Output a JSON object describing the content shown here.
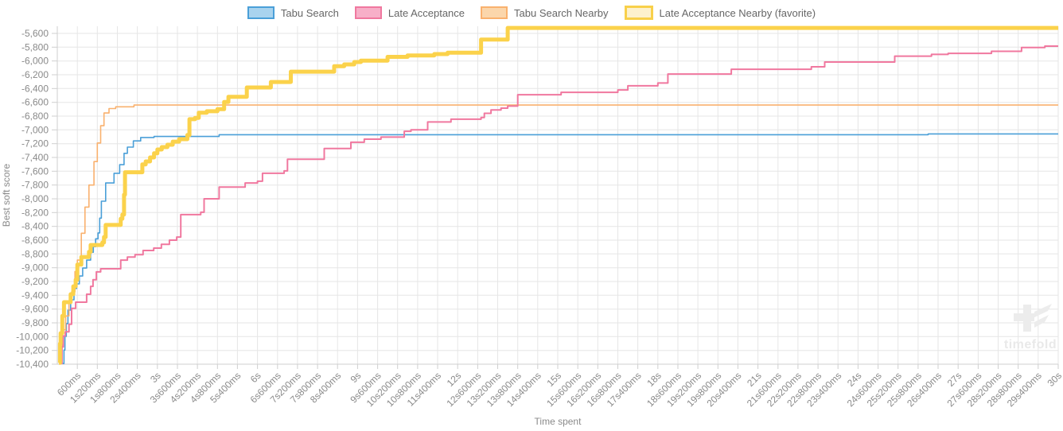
{
  "legend": {
    "items": [
      {
        "label": "Tabu Search",
        "fill": "#a9d3ee",
        "stroke": "#4a9fd8",
        "favorite": false
      },
      {
        "label": "Late Acceptance",
        "fill": "#f7afc8",
        "stroke": "#f0789f",
        "favorite": false
      },
      {
        "label": "Tabu Search Nearby",
        "fill": "#fbd6ab",
        "stroke": "#f9b16e",
        "favorite": false
      },
      {
        "label": "Late Acceptance Nearby (favorite)",
        "fill": "#fdf1cd",
        "stroke": "#f8d04a",
        "favorite": true
      }
    ]
  },
  "watermark": {
    "text": "timefold"
  },
  "chart_data": {
    "type": "line",
    "title": "",
    "xlabel": "Time spent",
    "ylabel": "Best soft score",
    "xlim": [
      0,
      30
    ],
    "ylim": [
      -10400,
      -5600
    ],
    "grid": true,
    "legend_position": "top",
    "x_ticks": [
      {
        "t": 0.6,
        "label": "600ms"
      },
      {
        "t": 1.2,
        "label": "1s200ms"
      },
      {
        "t": 1.8,
        "label": "1s800ms"
      },
      {
        "t": 2.4,
        "label": "2s400ms"
      },
      {
        "t": 3,
        "label": "3s"
      },
      {
        "t": 3.6,
        "label": "3s600ms"
      },
      {
        "t": 4.2,
        "label": "4s200ms"
      },
      {
        "t": 4.8,
        "label": "4s800ms"
      },
      {
        "t": 5.4,
        "label": "5s400ms"
      },
      {
        "t": 6,
        "label": "6s"
      },
      {
        "t": 6.6,
        "label": "6s600ms"
      },
      {
        "t": 7.2,
        "label": "7s200ms"
      },
      {
        "t": 7.8,
        "label": "7s800ms"
      },
      {
        "t": 8.4,
        "label": "8s400ms"
      },
      {
        "t": 9,
        "label": "9s"
      },
      {
        "t": 9.6,
        "label": "9s600ms"
      },
      {
        "t": 10.2,
        "label": "10s200ms"
      },
      {
        "t": 10.8,
        "label": "10s800ms"
      },
      {
        "t": 11.4,
        "label": "11s400ms"
      },
      {
        "t": 12,
        "label": "12s"
      },
      {
        "t": 12.6,
        "label": "12s600ms"
      },
      {
        "t": 13.2,
        "label": "13s200ms"
      },
      {
        "t": 13.8,
        "label": "13s800ms"
      },
      {
        "t": 14.4,
        "label": "14s400ms"
      },
      {
        "t": 15,
        "label": "15s"
      },
      {
        "t": 15.6,
        "label": "15s600ms"
      },
      {
        "t": 16.2,
        "label": "16s200ms"
      },
      {
        "t": 16.8,
        "label": "16s800ms"
      },
      {
        "t": 17.4,
        "label": "17s400ms"
      },
      {
        "t": 18,
        "label": "18s"
      },
      {
        "t": 18.6,
        "label": "18s600ms"
      },
      {
        "t": 19.2,
        "label": "19s200ms"
      },
      {
        "t": 19.8,
        "label": "19s800ms"
      },
      {
        "t": 20.4,
        "label": "20s400ms"
      },
      {
        "t": 21,
        "label": "21s"
      },
      {
        "t": 21.6,
        "label": "21s600ms"
      },
      {
        "t": 22.2,
        "label": "22s200ms"
      },
      {
        "t": 22.8,
        "label": "22s800ms"
      },
      {
        "t": 23.4,
        "label": "23s400ms"
      },
      {
        "t": 24,
        "label": "24s"
      },
      {
        "t": 24.6,
        "label": "24s600ms"
      },
      {
        "t": 25.2,
        "label": "25s200ms"
      },
      {
        "t": 25.8,
        "label": "25s800ms"
      },
      {
        "t": 26.4,
        "label": "26s400ms"
      },
      {
        "t": 27,
        "label": "27s"
      },
      {
        "t": 27.6,
        "label": "27s600ms"
      },
      {
        "t": 28.2,
        "label": "28s200ms"
      },
      {
        "t": 28.8,
        "label": "28s800ms"
      },
      {
        "t": 29.4,
        "label": "29s400ms"
      },
      {
        "t": 30,
        "label": "30s"
      }
    ],
    "y_ticks": [
      {
        "v": -5600,
        "label": "-5,600"
      },
      {
        "v": -5800,
        "label": "-5,800"
      },
      {
        "v": -6000,
        "label": "-6,000"
      },
      {
        "v": -6200,
        "label": "-6,200"
      },
      {
        "v": -6400,
        "label": "-6,400"
      },
      {
        "v": -6600,
        "label": "-6,600"
      },
      {
        "v": -6800,
        "label": "-6,800"
      },
      {
        "v": -7000,
        "label": "-7,000"
      },
      {
        "v": -7200,
        "label": "-7,200"
      },
      {
        "v": -7400,
        "label": "-7,400"
      },
      {
        "v": -7600,
        "label": "-7,600"
      },
      {
        "v": -7800,
        "label": "-7,800"
      },
      {
        "v": -8000,
        "label": "-8,000"
      },
      {
        "v": -8200,
        "label": "-8,200"
      },
      {
        "v": -8400,
        "label": "-8,400"
      },
      {
        "v": -8600,
        "label": "-8,600"
      },
      {
        "v": -8800,
        "label": "-8,800"
      },
      {
        "v": -9000,
        "label": "-9,000"
      },
      {
        "v": -9200,
        "label": "-9,200"
      },
      {
        "v": -9400,
        "label": "-9,400"
      },
      {
        "v": -9600,
        "label": "-9,600"
      },
      {
        "v": -9800,
        "label": "-9,800"
      },
      {
        "v": -10000,
        "label": "-10,000"
      },
      {
        "v": -10200,
        "label": "-10,200"
      },
      {
        "v": -10400,
        "label": "-10,400"
      }
    ],
    "series": [
      {
        "name": "Tabu Search",
        "color": "#4a9fd8",
        "width": 1.6,
        "step": true,
        "points": [
          [
            0.16,
            -10390
          ],
          [
            0.2,
            -10195
          ],
          [
            0.23,
            -9995
          ],
          [
            0.27,
            -9810
          ],
          [
            0.32,
            -9615
          ],
          [
            0.4,
            -9465
          ],
          [
            0.5,
            -9300
          ],
          [
            0.58,
            -9235
          ],
          [
            0.66,
            -9120
          ],
          [
            0.76,
            -9005
          ],
          [
            0.88,
            -8890
          ],
          [
            1.0,
            -8775
          ],
          [
            1.08,
            -8695
          ],
          [
            1.15,
            -8580
          ],
          [
            1.22,
            -8495
          ],
          [
            1.27,
            -8280
          ],
          [
            1.32,
            -8035
          ],
          [
            1.45,
            -7770
          ],
          [
            1.7,
            -7630
          ],
          [
            1.87,
            -7505
          ],
          [
            2.0,
            -7340
          ],
          [
            2.1,
            -7250
          ],
          [
            2.28,
            -7160
          ],
          [
            2.5,
            -7110
          ],
          [
            2.9,
            -7095
          ],
          [
            4.85,
            -7070
          ],
          [
            26.1,
            -7058
          ],
          [
            30,
            -7058
          ]
        ]
      },
      {
        "name": "Tabu Search Nearby",
        "color": "#f9b16e",
        "width": 1.6,
        "step": true,
        "points": [
          [
            0.05,
            -10380
          ],
          [
            0.1,
            -10145
          ],
          [
            0.16,
            -9900
          ],
          [
            0.25,
            -9700
          ],
          [
            0.35,
            -9500
          ],
          [
            0.43,
            -9350
          ],
          [
            0.53,
            -9055
          ],
          [
            0.6,
            -8890
          ],
          [
            0.72,
            -8500
          ],
          [
            0.83,
            -8120
          ],
          [
            0.95,
            -7800
          ],
          [
            1.1,
            -7460
          ],
          [
            1.2,
            -7190
          ],
          [
            1.3,
            -6940
          ],
          [
            1.4,
            -6755
          ],
          [
            1.55,
            -6690
          ],
          [
            1.75,
            -6665
          ],
          [
            2.3,
            -6640
          ],
          [
            30,
            -6640
          ]
        ]
      },
      {
        "name": "Late Acceptance",
        "color": "#f0789f",
        "width": 2,
        "step": true,
        "points": [
          [
            0.1,
            -10390
          ],
          [
            0.14,
            -10150
          ],
          [
            0.18,
            -9990
          ],
          [
            0.24,
            -9930
          ],
          [
            0.35,
            -9820
          ],
          [
            0.43,
            -9590
          ],
          [
            0.55,
            -9500
          ],
          [
            0.88,
            -9385
          ],
          [
            1.0,
            -9270
          ],
          [
            1.07,
            -9175
          ],
          [
            1.17,
            -9060
          ],
          [
            1.3,
            -9015
          ],
          [
            1.9,
            -8890
          ],
          [
            2.1,
            -8845
          ],
          [
            2.33,
            -8810
          ],
          [
            2.57,
            -8750
          ],
          [
            2.89,
            -8715
          ],
          [
            3.12,
            -8660
          ],
          [
            3.36,
            -8600
          ],
          [
            3.58,
            -8555
          ],
          [
            3.7,
            -8230
          ],
          [
            4.3,
            -8195
          ],
          [
            4.4,
            -8000
          ],
          [
            4.85,
            -7830
          ],
          [
            5.63,
            -7770
          ],
          [
            6.0,
            -7745
          ],
          [
            6.15,
            -7630
          ],
          [
            6.8,
            -7595
          ],
          [
            6.9,
            -7425
          ],
          [
            8.0,
            -7270
          ],
          [
            8.8,
            -7180
          ],
          [
            9.2,
            -7135
          ],
          [
            9.7,
            -7105
          ],
          [
            10.4,
            -7020
          ],
          [
            10.6,
            -7000
          ],
          [
            11.1,
            -6885
          ],
          [
            11.8,
            -6845
          ],
          [
            12.7,
            -6820
          ],
          [
            12.8,
            -6760
          ],
          [
            13.0,
            -6710
          ],
          [
            13.3,
            -6685
          ],
          [
            13.5,
            -6655
          ],
          [
            13.8,
            -6490
          ],
          [
            15.1,
            -6455
          ],
          [
            16.8,
            -6420
          ],
          [
            17.1,
            -6360
          ],
          [
            18.0,
            -6320
          ],
          [
            18.3,
            -6190
          ],
          [
            20.2,
            -6120
          ],
          [
            22.6,
            -6085
          ],
          [
            23.0,
            -6015
          ],
          [
            25.1,
            -5930
          ],
          [
            26.2,
            -5905
          ],
          [
            26.7,
            -5890
          ],
          [
            28.0,
            -5860
          ],
          [
            28.9,
            -5805
          ],
          [
            29.6,
            -5785
          ],
          [
            30,
            -5785
          ]
        ]
      },
      {
        "name": "Late Acceptance Nearby (favorite)",
        "color": "#fbd24b",
        "width": 5,
        "step": true,
        "points": [
          [
            0.05,
            -10380
          ],
          [
            0.08,
            -10100
          ],
          [
            0.1,
            -9950
          ],
          [
            0.15,
            -9700
          ],
          [
            0.2,
            -9500
          ],
          [
            0.4,
            -9385
          ],
          [
            0.48,
            -9270
          ],
          [
            0.55,
            -9175
          ],
          [
            0.6,
            -8955
          ],
          [
            0.72,
            -8845
          ],
          [
            0.95,
            -8770
          ],
          [
            1.0,
            -8670
          ],
          [
            1.35,
            -8635
          ],
          [
            1.4,
            -8555
          ],
          [
            1.45,
            -8380
          ],
          [
            1.9,
            -8290
          ],
          [
            1.95,
            -8230
          ],
          [
            2.0,
            -7940
          ],
          [
            2.03,
            -7615
          ],
          [
            2.55,
            -7500
          ],
          [
            2.65,
            -7458
          ],
          [
            2.78,
            -7400
          ],
          [
            2.9,
            -7340
          ],
          [
            3.0,
            -7285
          ],
          [
            3.13,
            -7250
          ],
          [
            3.3,
            -7215
          ],
          [
            3.46,
            -7170
          ],
          [
            3.65,
            -7135
          ],
          [
            3.9,
            -7075
          ],
          [
            3.96,
            -6845
          ],
          [
            4.13,
            -6825
          ],
          [
            4.24,
            -6750
          ],
          [
            4.48,
            -6730
          ],
          [
            4.8,
            -6700
          ],
          [
            5.0,
            -6595
          ],
          [
            5.13,
            -6520
          ],
          [
            5.68,
            -6385
          ],
          [
            6.4,
            -6305
          ],
          [
            7.0,
            -6155
          ],
          [
            8.3,
            -6075
          ],
          [
            8.6,
            -6050
          ],
          [
            8.9,
            -6015
          ],
          [
            9.1,
            -5995
          ],
          [
            9.9,
            -5940
          ],
          [
            10.5,
            -5920
          ],
          [
            11.3,
            -5900
          ],
          [
            11.7,
            -5880
          ],
          [
            12.7,
            -5690
          ],
          [
            13.5,
            -5520
          ],
          [
            30,
            -5520
          ]
        ]
      }
    ]
  }
}
